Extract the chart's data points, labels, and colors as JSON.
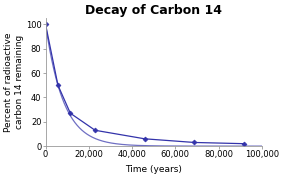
{
  "title": "Decay of Carbon 14",
  "xlabel": "Time (years)",
  "ylabel": "Percent of radioactive\ncarbon 14 remaining",
  "line_color": "#3333AA",
  "marker": "D",
  "marker_size": 2.5,
  "background_color": "#ffffff",
  "xlim": [
    0,
    100000
  ],
  "ylim": [
    0,
    105
  ],
  "xticks": [
    0,
    20000,
    40000,
    60000,
    80000,
    100000
  ],
  "xtick_labels": [
    "0",
    "20,000",
    "40,000",
    "60,000",
    "80,000",
    "100,000"
  ],
  "yticks": [
    0,
    20,
    40,
    60,
    80,
    100
  ],
  "x_data_points": [
    0,
    5730,
    11460,
    22920,
    45840,
    68760,
    91680
  ],
  "y_data_points": [
    100,
    50,
    27,
    13,
    6,
    3,
    2
  ],
  "title_fontsize": 9,
  "label_fontsize": 6.5,
  "tick_fontsize": 6
}
